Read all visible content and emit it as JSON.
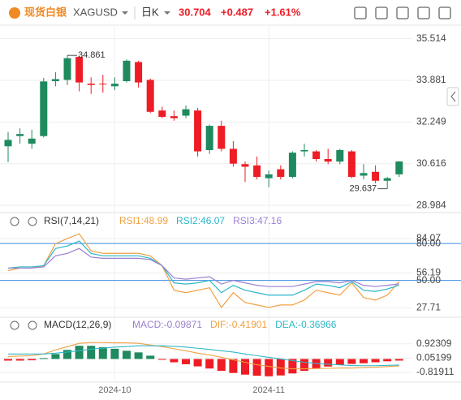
{
  "header": {
    "logo_text": "现货白银",
    "symbol": "XAGUSD",
    "period": "日K",
    "price": "30.704",
    "change": "+0.487",
    "change_pct": "+1.61%"
  },
  "chart_data": [
    {
      "type": "candlestick",
      "categories": [
        null,
        null,
        null,
        null,
        null,
        null,
        null,
        null,
        null,
        "2024-10",
        null,
        null,
        null,
        null,
        null,
        null,
        null,
        null,
        null,
        null,
        null,
        null,
        "2024-11",
        null,
        null,
        null,
        null,
        null,
        null,
        null,
        null,
        null,
        null,
        null
      ],
      "open": [
        31.3,
        31.7,
        31.4,
        31.7,
        33.85,
        33.9,
        34.8,
        33.75,
        33.75,
        33.65,
        33.85,
        34.6,
        33.9,
        32.7,
        32.48,
        32.5,
        32.7,
        31.15,
        32.1,
        31.2,
        30.6,
        30.55,
        30.05,
        30.4,
        30.1,
        31.1,
        31.1,
        30.8,
        30.7,
        31.1,
        30.15,
        30.3,
        29.95,
        30.2
      ],
      "high": [
        31.86,
        32.0,
        31.95,
        33.98,
        34.2,
        34.861,
        34.85,
        34.0,
        34.1,
        34.0,
        34.7,
        34.65,
        33.95,
        32.85,
        32.7,
        32.9,
        32.8,
        32.15,
        32.3,
        31.5,
        30.7,
        30.9,
        30.35,
        30.55,
        31.1,
        31.4,
        31.15,
        31.2,
        31.2,
        31.15,
        30.6,
        30.55,
        30.1,
        30.72
      ],
      "low": [
        30.68,
        31.4,
        31.2,
        31.65,
        33.65,
        33.7,
        33.45,
        33.35,
        33.4,
        33.5,
        33.8,
        33.6,
        32.6,
        32.4,
        32.3,
        32.4,
        30.9,
        31.0,
        31.1,
        30.5,
        29.9,
        30.0,
        29.7,
        30.0,
        30.05,
        30.9,
        30.7,
        30.6,
        30.6,
        30.05,
        30.0,
        29.85,
        29.637,
        30.1
      ],
      "close": [
        31.55,
        31.78,
        31.6,
        33.84,
        33.93,
        34.75,
        33.8,
        33.7,
        33.72,
        33.75,
        34.65,
        33.8,
        32.65,
        32.45,
        32.4,
        32.75,
        31.1,
        32.1,
        31.2,
        30.62,
        30.5,
        30.1,
        30.2,
        30.1,
        31.05,
        31.15,
        30.8,
        30.7,
        31.15,
        30.1,
        30.25,
        29.95,
        30.05,
        30.704
      ],
      "up_color": "#1f8a5e",
      "down_color": "#ee1c25",
      "ylim": [
        28.83,
        35.885
      ],
      "yticks": [
        35.514,
        33.881,
        32.249,
        30.616,
        28.984
      ],
      "grid": true,
      "annotations": [
        "34.861",
        "29.637"
      ]
    },
    {
      "type": "line",
      "title": "RSI(7,14,21)",
      "series": [
        {
          "name": "RSI1:48.99",
          "color": "#f0a040",
          "values": [
            58,
            60,
            60,
            62,
            80,
            84,
            88,
            74,
            72,
            72,
            72,
            72,
            70,
            62,
            42,
            40,
            42,
            44,
            28,
            40,
            32,
            30,
            28,
            30,
            30,
            34,
            42,
            40,
            38,
            48,
            36,
            34,
            38,
            48.99
          ]
        },
        {
          "name": "RSI2:46.07",
          "color": "#2ab6c8",
          "values": [
            60,
            61,
            61,
            62,
            76,
            78,
            82,
            72,
            70,
            70,
            70,
            70,
            68,
            62,
            48,
            47,
            48,
            50,
            40,
            46,
            42,
            40,
            38,
            38,
            38,
            42,
            47,
            46,
            44,
            49,
            42,
            41,
            43,
            46.07
          ]
        },
        {
          "name": "RSI3:47.16",
          "color": "#9a80d0",
          "values": [
            60,
            60,
            60,
            61,
            70,
            72,
            76,
            69,
            68,
            68,
            68,
            68,
            67,
            62,
            52,
            51,
            52,
            53,
            47,
            50,
            48,
            46,
            45,
            45,
            45,
            47,
            49,
            49,
            48,
            50,
            46,
            45,
            46,
            47.16
          ]
        }
      ],
      "ylim": [
        22,
        92
      ],
      "yticks": [
        84.07,
        {
          "value": 80,
          "label": "80.00"
        },
        56.19,
        {
          "value": 50,
          "label": "50.00"
        },
        27.71
      ],
      "hlines": [
        80,
        50
      ],
      "hline_color": "#3d8fe0",
      "grid": true
    },
    {
      "type": "combo",
      "title": "MACD(12,26,9)",
      "series": [
        {
          "name": "MACD:-0.09871",
          "kind": "bar",
          "color": "#1f8a5e",
          "negative_color": "#ee1c25",
          "label_color": "#9a80d0",
          "values": [
            -0.1,
            -0.1,
            -0.08,
            0.05,
            0.3,
            0.55,
            0.8,
            0.8,
            0.72,
            0.62,
            0.5,
            0.4,
            0.2,
            -0.05,
            -0.2,
            -0.32,
            -0.45,
            -0.58,
            -0.72,
            -0.85,
            -0.95,
            -1.02,
            -1.05,
            -1.0,
            -0.88,
            -0.72,
            -0.58,
            -0.46,
            -0.36,
            -0.3,
            -0.26,
            -0.2,
            -0.14,
            -0.09871
          ]
        },
        {
          "name": "DIF:-0.41901",
          "kind": "line",
          "color": "#f0a040",
          "values": [
            0.15,
            0.18,
            0.2,
            0.3,
            0.55,
            0.75,
            0.95,
            1.0,
            1.0,
            0.98,
            0.98,
            0.95,
            0.85,
            0.75,
            0.62,
            0.5,
            0.35,
            0.25,
            0.1,
            -0.05,
            -0.2,
            -0.35,
            -0.45,
            -0.55,
            -0.6,
            -0.6,
            -0.58,
            -0.57,
            -0.55,
            -0.55,
            -0.52,
            -0.5,
            -0.46,
            -0.41901
          ]
        },
        {
          "name": "DEA:-0.36966",
          "kind": "line",
          "color": "#30b8c8",
          "values": [
            0.3,
            0.3,
            0.3,
            0.3,
            0.35,
            0.42,
            0.5,
            0.6,
            0.66,
            0.72,
            0.76,
            0.8,
            0.8,
            0.8,
            0.77,
            0.72,
            0.65,
            0.58,
            0.5,
            0.42,
            0.3,
            0.2,
            0.1,
            0.0,
            -0.1,
            -0.2,
            -0.27,
            -0.32,
            -0.36,
            -0.4,
            -0.41,
            -0.41,
            -0.39,
            -0.36966
          ]
        }
      ],
      "ylim": [
        -1.26,
        1.5
      ],
      "yticks": [
        0.92309,
        0.05199,
        -0.81911
      ],
      "grid": true
    }
  ]
}
